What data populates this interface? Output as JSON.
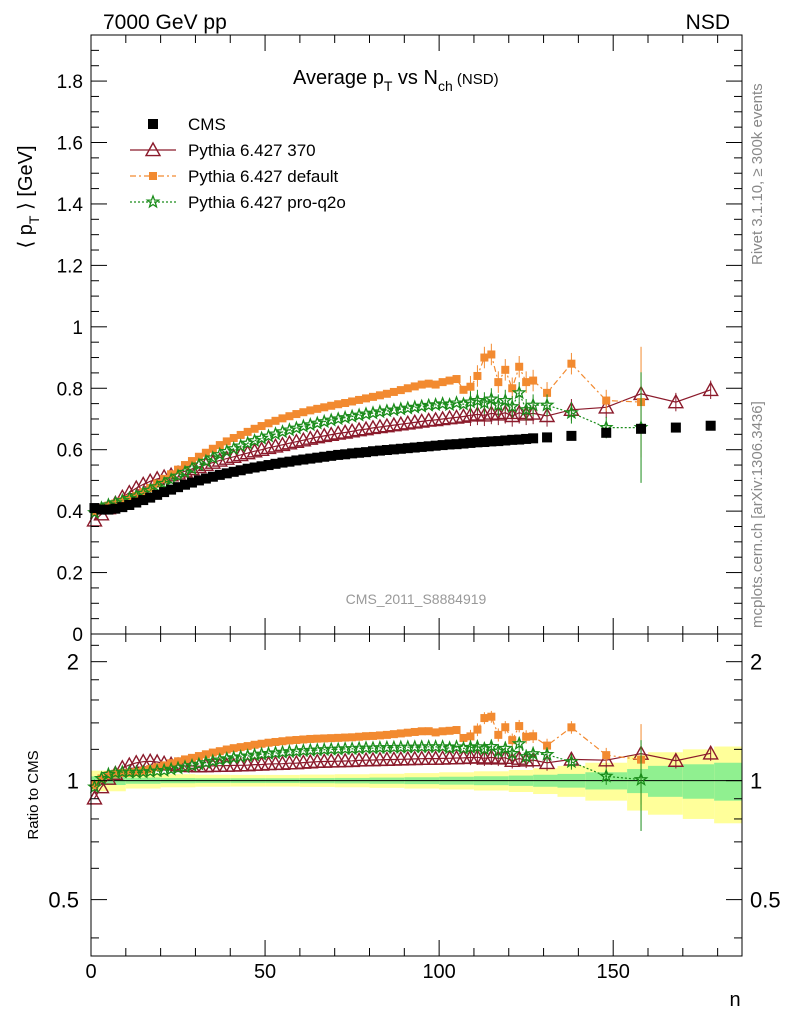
{
  "header": {
    "left": "7000 GeV pp",
    "right": "NSD"
  },
  "side_labels": {
    "rivet": "Rivet 3.1.10, ≥ 300k events",
    "source": "mcplots.cern.ch [arXiv:1306.3436]"
  },
  "colors": {
    "cms": "#000000",
    "p370": "#8b1a2b",
    "pdefault": "#f28a30",
    "pq2o": "#1a8c1a",
    "band_inner": "#90f090",
    "band_outer": "#ffff9a"
  },
  "chart_data": [
    {
      "type": "scatter",
      "title_main": "Average p",
      "title_sub1": "T",
      "title_mid": " vs N",
      "title_sub2": "ch",
      "title_tail": " (NSD)",
      "ylabel_main": "⟨ p",
      "ylabel_sub": "T",
      "ylabel_tail": " ⟩ [GeV]",
      "watermark": "CMS_2011_S8884919",
      "xlim": [
        0,
        187
      ],
      "ylim": [
        0,
        1.95
      ],
      "yticks": [
        "0",
        "0.2",
        "0.4",
        "0.6",
        "0.8",
        "1",
        "1.2",
        "1.4",
        "1.6",
        "1.8"
      ],
      "legend_position": "top-left",
      "legend": [
        "CMS",
        "Pythia 6.427 370",
        "Pythia 6.427 default",
        "Pythia 6.427 pro-q2o"
      ],
      "series": [
        {
          "name": "CMS",
          "x": [
            1,
            3,
            5,
            7,
            9,
            11,
            13,
            15,
            17,
            19,
            21,
            23,
            25,
            27,
            29,
            31,
            33,
            35,
            37,
            39,
            41,
            43,
            45,
            47,
            49,
            51,
            53,
            55,
            57,
            59,
            61,
            63,
            65,
            67,
            69,
            71,
            73,
            75,
            77,
            79,
            81,
            83,
            85,
            87,
            89,
            91,
            93,
            95,
            97,
            99,
            101,
            103,
            105,
            107,
            109,
            111,
            113,
            115,
            117,
            119,
            121,
            123,
            125,
            127,
            131,
            138,
            148,
            158,
            168,
            178
          ],
          "y": [
            0.41,
            0.405,
            0.405,
            0.408,
            0.413,
            0.42,
            0.428,
            0.436,
            0.444,
            0.453,
            0.462,
            0.47,
            0.478,
            0.486,
            0.493,
            0.5,
            0.506,
            0.512,
            0.518,
            0.523,
            0.528,
            0.533,
            0.538,
            0.542,
            0.546,
            0.55,
            0.554,
            0.558,
            0.561,
            0.565,
            0.568,
            0.571,
            0.574,
            0.577,
            0.58,
            0.583,
            0.585,
            0.588,
            0.59,
            0.592,
            0.595,
            0.597,
            0.599,
            0.601,
            0.603,
            0.605,
            0.607,
            0.609,
            0.611,
            0.613,
            0.615,
            0.617,
            0.618,
            0.62,
            0.622,
            0.624,
            0.625,
            0.627,
            0.628,
            0.63,
            0.632,
            0.633,
            0.635,
            0.637,
            0.64,
            0.645,
            0.655,
            0.668,
            0.672,
            0.678
          ]
        },
        {
          "name": "Pythia 6.427 370",
          "x": [
            1,
            3,
            5,
            7,
            9,
            11,
            13,
            15,
            17,
            19,
            21,
            23,
            25,
            27,
            29,
            31,
            33,
            35,
            37,
            39,
            41,
            43,
            45,
            47,
            49,
            51,
            53,
            55,
            57,
            59,
            61,
            63,
            65,
            67,
            69,
            71,
            73,
            75,
            77,
            79,
            81,
            83,
            85,
            87,
            89,
            91,
            93,
            95,
            97,
            99,
            101,
            103,
            105,
            107,
            109,
            111,
            113,
            115,
            117,
            119,
            121,
            123,
            125,
            127,
            131,
            138,
            148,
            158,
            168,
            178
          ],
          "y": [
            0.37,
            0.39,
            0.41,
            0.425,
            0.445,
            0.46,
            0.475,
            0.487,
            0.497,
            0.505,
            0.511,
            0.517,
            0.523,
            0.53,
            0.537,
            0.544,
            0.551,
            0.558,
            0.565,
            0.571,
            0.577,
            0.583,
            0.589,
            0.595,
            0.6,
            0.606,
            0.611,
            0.616,
            0.621,
            0.626,
            0.631,
            0.636,
            0.641,
            0.645,
            0.649,
            0.653,
            0.656,
            0.66,
            0.664,
            0.667,
            0.671,
            0.674,
            0.677,
            0.68,
            0.683,
            0.686,
            0.689,
            0.692,
            0.695,
            0.697,
            0.7,
            0.703,
            0.705,
            0.708,
            0.712,
            0.715,
            0.712,
            0.718,
            0.715,
            0.72,
            0.71,
            0.72,
            0.715,
            0.718,
            0.71,
            0.73,
            0.738,
            0.782,
            0.755,
            0.795
          ]
        },
        {
          "name": "Pythia 6.427 default",
          "x": [
            1,
            3,
            5,
            7,
            9,
            11,
            13,
            15,
            17,
            19,
            21,
            23,
            25,
            27,
            29,
            31,
            33,
            35,
            37,
            39,
            41,
            43,
            45,
            47,
            49,
            51,
            53,
            55,
            57,
            59,
            61,
            63,
            65,
            67,
            69,
            71,
            73,
            75,
            77,
            79,
            81,
            83,
            85,
            87,
            89,
            91,
            93,
            95,
            97,
            99,
            101,
            103,
            105,
            107,
            109,
            111,
            113,
            115,
            117,
            119,
            121,
            123,
            125,
            127,
            131,
            138,
            148,
            158
          ],
          "y": [
            0.4,
            0.41,
            0.418,
            0.425,
            0.432,
            0.44,
            0.45,
            0.462,
            0.475,
            0.49,
            0.505,
            0.52,
            0.535,
            0.55,
            0.563,
            0.577,
            0.59,
            0.603,
            0.615,
            0.627,
            0.638,
            0.648,
            0.658,
            0.668,
            0.677,
            0.686,
            0.694,
            0.702,
            0.709,
            0.716,
            0.722,
            0.728,
            0.733,
            0.738,
            0.743,
            0.748,
            0.752,
            0.757,
            0.762,
            0.767,
            0.772,
            0.777,
            0.782,
            0.788,
            0.794,
            0.8,
            0.806,
            0.812,
            0.815,
            0.812,
            0.82,
            0.825,
            0.83,
            0.795,
            0.805,
            0.84,
            0.9,
            0.91,
            0.82,
            0.86,
            0.8,
            0.87,
            0.82,
            0.825,
            0.785,
            0.88,
            0.76,
            0.755
          ]
        },
        {
          "name": "Pythia 6.427 pro-q2o",
          "x": [
            1,
            3,
            5,
            7,
            9,
            11,
            13,
            15,
            17,
            19,
            21,
            23,
            25,
            27,
            29,
            31,
            33,
            35,
            37,
            39,
            41,
            43,
            45,
            47,
            49,
            51,
            53,
            55,
            57,
            59,
            61,
            63,
            65,
            67,
            69,
            71,
            73,
            75,
            77,
            79,
            81,
            83,
            85,
            87,
            89,
            91,
            93,
            95,
            97,
            99,
            101,
            103,
            105,
            107,
            109,
            111,
            113,
            115,
            117,
            119,
            121,
            123,
            125,
            127,
            131,
            138,
            148,
            158
          ],
          "y": [
            0.395,
            0.41,
            0.42,
            0.427,
            0.434,
            0.441,
            0.449,
            0.458,
            0.468,
            0.479,
            0.49,
            0.502,
            0.514,
            0.526,
            0.538,
            0.55,
            0.562,
            0.573,
            0.584,
            0.594,
            0.603,
            0.612,
            0.621,
            0.629,
            0.637,
            0.644,
            0.651,
            0.658,
            0.664,
            0.67,
            0.676,
            0.681,
            0.686,
            0.691,
            0.696,
            0.7,
            0.704,
            0.708,
            0.712,
            0.716,
            0.719,
            0.723,
            0.726,
            0.729,
            0.732,
            0.735,
            0.738,
            0.741,
            0.744,
            0.746,
            0.749,
            0.746,
            0.752,
            0.748,
            0.755,
            0.76,
            0.752,
            0.765,
            0.745,
            0.76,
            0.74,
            0.785,
            0.73,
            0.745,
            0.745,
            0.72,
            0.672,
            0.672
          ]
        }
      ]
    },
    {
      "type": "scatter",
      "ylabel": "Ratio to CMS",
      "xlabel": "n",
      "xlim": [
        0,
        187
      ],
      "ylim": [
        0.36,
        2.35
      ],
      "yscale": "log",
      "xticks": [
        "0",
        "50",
        "100",
        "150"
      ],
      "yticks": [
        "0.5",
        "1",
        "2"
      ],
      "band_edges": [
        0,
        10,
        20,
        30,
        40,
        50,
        60,
        70,
        80,
        90,
        100,
        110,
        120,
        127,
        134,
        142,
        154,
        160,
        170,
        179,
        187
      ],
      "band_inner_halfwidth": [
        0.025,
        0.018,
        0.015,
        0.014,
        0.014,
        0.014,
        0.015,
        0.016,
        0.018,
        0.02,
        0.023,
        0.026,
        0.03,
        0.035,
        0.04,
        0.05,
        0.07,
        0.09,
        0.1,
        0.11
      ],
      "band_outer_halfwidth": [
        0.06,
        0.045,
        0.038,
        0.035,
        0.034,
        0.034,
        0.036,
        0.038,
        0.041,
        0.045,
        0.05,
        0.056,
        0.064,
        0.075,
        0.09,
        0.11,
        0.16,
        0.18,
        0.2,
        0.22
      ]
    }
  ]
}
